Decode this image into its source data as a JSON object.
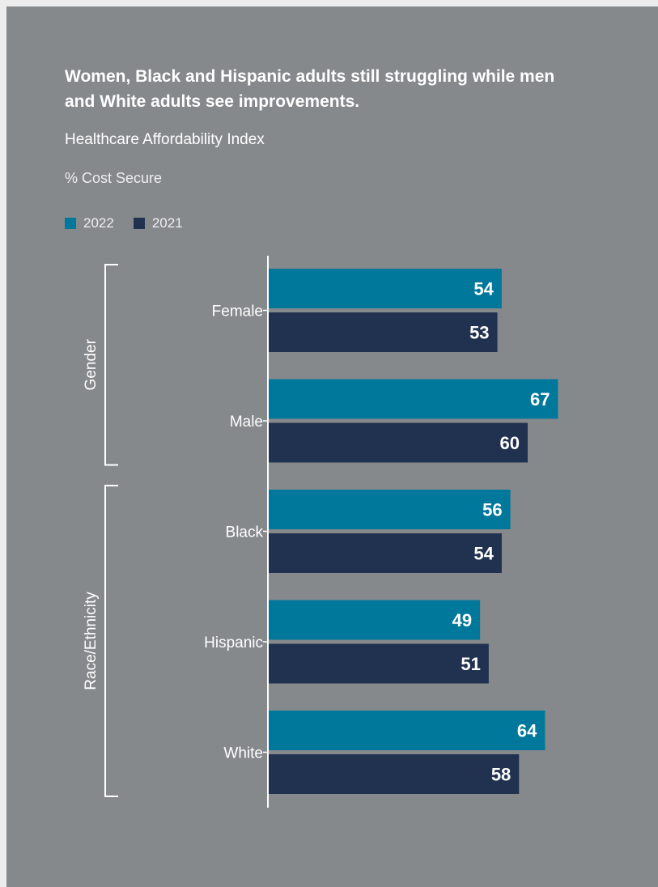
{
  "title": "Women, Black and Hispanic adults still struggling while men and White adults see improvements.",
  "subtitle": "Healthcare Affordability Index",
  "unit_label": "% Cost Secure",
  "colors": {
    "background": "#86898c",
    "series_2022": "#00789b",
    "series_2021": "#203250",
    "text": "#ffffff"
  },
  "legend": [
    {
      "label": "2022",
      "color": "#00789b"
    },
    {
      "label": "2021",
      "color": "#203250"
    }
  ],
  "chart_data": {
    "type": "bar",
    "orientation": "horizontal",
    "title": "Women, Black and Hispanic adults still struggling while men and White adults see improvements.",
    "subtitle": "Healthcare Affordability Index",
    "xlabel": "% Cost Secure",
    "ylabel": "",
    "categories": [
      "Female",
      "Male",
      "Black",
      "Hispanic",
      "White"
    ],
    "groups": [
      {
        "label": "Gender",
        "categories": [
          "Female",
          "Male"
        ]
      },
      {
        "label": "Race/Ethnicity",
        "categories": [
          "Black",
          "Hispanic",
          "White"
        ]
      }
    ],
    "series": [
      {
        "name": "2022",
        "color": "#00789b",
        "values": [
          54,
          67,
          56,
          49,
          64
        ]
      },
      {
        "name": "2021",
        "color": "#203250",
        "values": [
          53,
          60,
          54,
          51,
          58
        ]
      }
    ],
    "xlim": [
      0,
      100
    ],
    "grid": false,
    "legend_position": "top-left",
    "data_labels": true
  }
}
